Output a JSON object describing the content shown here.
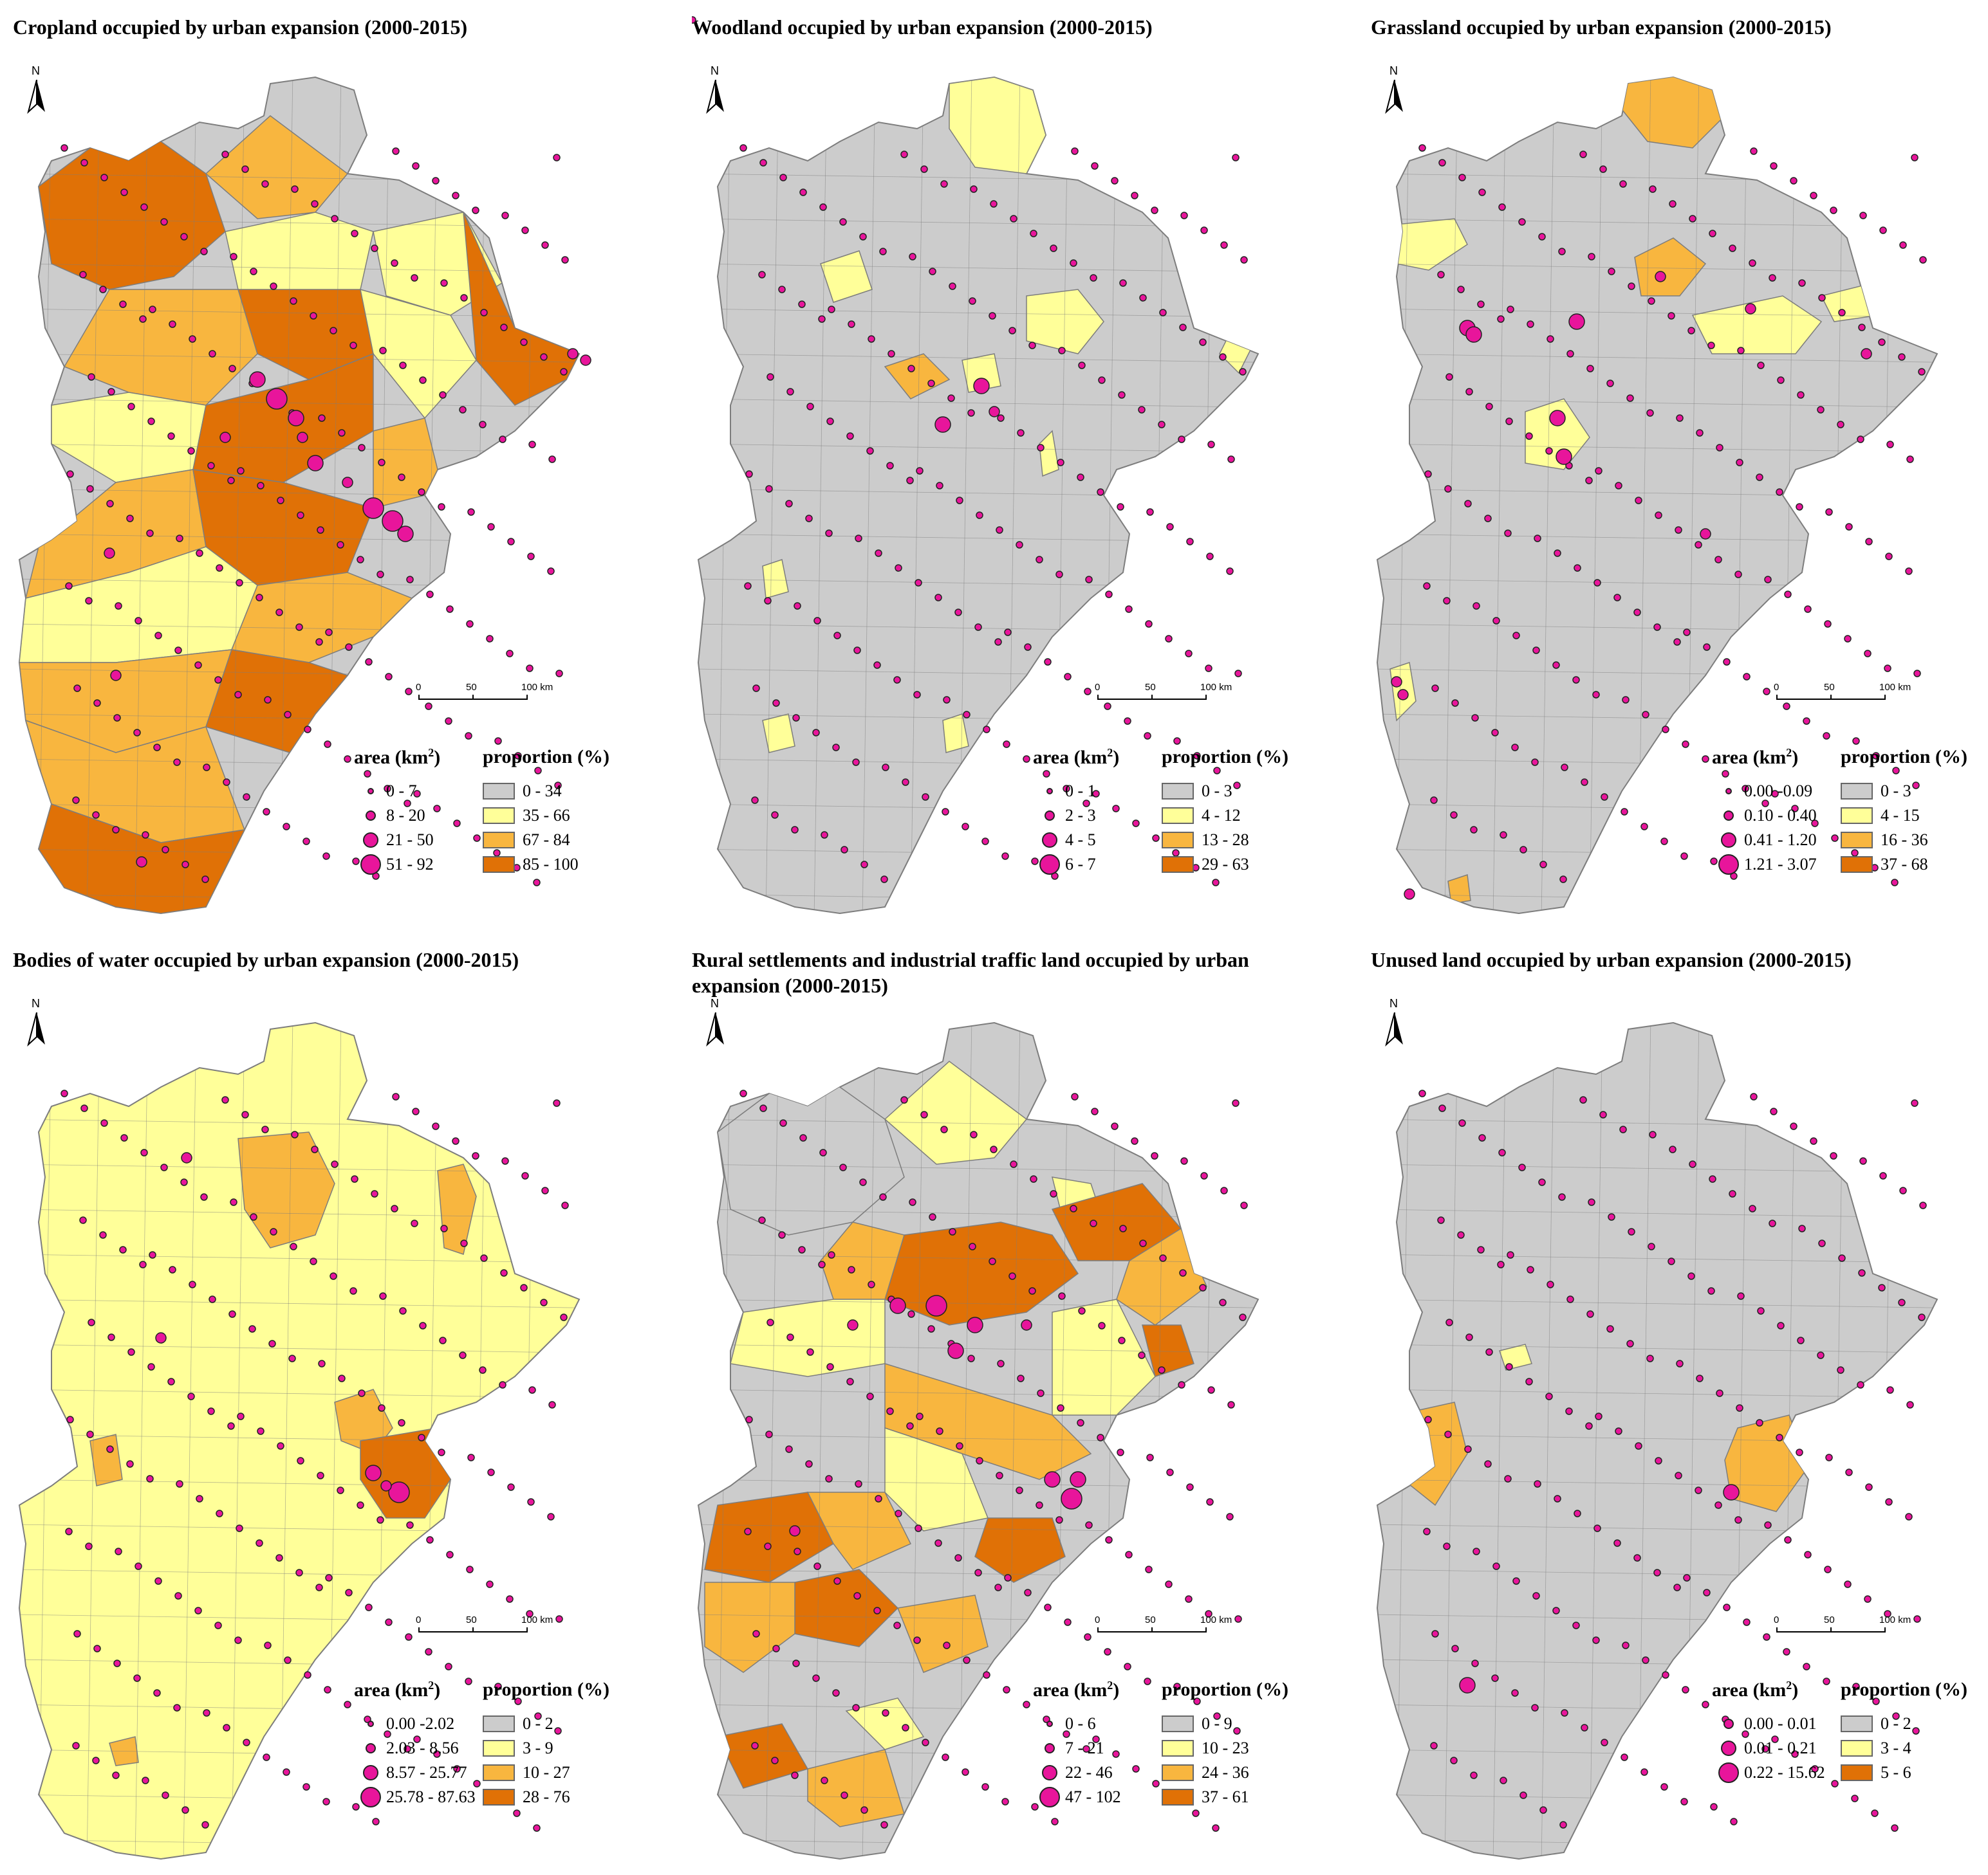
{
  "colors": {
    "class1": "#cccccc",
    "class2": "#ffff99",
    "class3": "#f8b63f",
    "class4": "#e07106",
    "water_class1": "#ffff99",
    "boundary": "#7d7d7d",
    "dot": "#e8159b"
  },
  "common": {
    "north_label": "N",
    "scale_labels": [
      "0",
      "50",
      "100 km"
    ],
    "area_heading": "area (km",
    "area_superscript": "2",
    "area_heading_close": ")",
    "proportion_heading": "proportion (%)"
  },
  "panels": [
    {
      "title": "Cropland occupied by urban expansion (2000-2015)",
      "area_classes": [
        "0 - 7",
        "8 - 20",
        "21 - 50",
        "51 - 92"
      ],
      "proportion_classes": [
        "0 - 34",
        "35 - 66",
        "67 - 84",
        "85 - 100"
      ],
      "symbols": [
        {
          "name": "c1",
          "color": "#cccccc"
        },
        {
          "name": "c2",
          "color": "#ffff99"
        },
        {
          "name": "c3",
          "color": "#f8b63f"
        },
        {
          "name": "c4",
          "color": "#e07106"
        }
      ]
    },
    {
      "title": "Woodland occupied by urban expansion (2000-2015)",
      "area_classes": [
        "0 - 1",
        "2 - 3",
        "4 - 5",
        "6 - 7"
      ],
      "proportion_classes": [
        "0 - 3",
        "4 - 12",
        "13 - 28",
        "29 - 63"
      ],
      "symbols": [
        {
          "name": "c1",
          "color": "#cccccc"
        },
        {
          "name": "c2",
          "color": "#ffff99"
        },
        {
          "name": "c3",
          "color": "#f8b63f"
        },
        {
          "name": "c4",
          "color": "#e07106"
        }
      ]
    },
    {
      "title": "Grassland occupied by urban expansion (2000-2015)",
      "area_classes": [
        "0.00 -0.09",
        "0.10 - 0.40",
        "0.41 - 1.20",
        "1.21 - 3.07"
      ],
      "proportion_classes": [
        "0 - 3",
        "4 - 15",
        "16 - 36",
        "37 - 68"
      ],
      "symbols": [
        {
          "name": "c1",
          "color": "#cccccc"
        },
        {
          "name": "c2",
          "color": "#ffff99"
        },
        {
          "name": "c3",
          "color": "#f8b63f"
        },
        {
          "name": "c4",
          "color": "#e07106"
        }
      ]
    },
    {
      "title": "Bodies of water occupied by urban expansion (2000-2015)",
      "area_classes": [
        "0.00 -2.02",
        "2.03 - 8.56",
        "8.57 - 25.77",
        "25.78 - 87.63"
      ],
      "proportion_classes": [
        "0 - 2",
        "3 - 9",
        "10 - 27",
        "28 - 76"
      ],
      "symbols": [
        {
          "name": "c1",
          "color": "#cccccc"
        },
        {
          "name": "c2",
          "color": "#ffff99"
        },
        {
          "name": "c3",
          "color": "#f8b63f"
        },
        {
          "name": "c4",
          "color": "#e07106"
        }
      ]
    },
    {
      "title": "Rural settlements and industrial traffic land occupied by urban expansion (2000-2015)",
      "area_classes": [
        "0 - 6",
        "7 - 21",
        "22 - 46",
        "47 - 102"
      ],
      "proportion_classes": [
        "0 - 9",
        "10 - 23",
        "24 - 36",
        "37 - 61"
      ],
      "symbols": [
        {
          "name": "c1",
          "color": "#cccccc"
        },
        {
          "name": "c2",
          "color": "#ffff99"
        },
        {
          "name": "c3",
          "color": "#f8b63f"
        },
        {
          "name": "c4",
          "color": "#e07106"
        }
      ]
    },
    {
      "title": "Unused land occupied by urban expansion (2000-2015)",
      "area_classes": [
        "0.00 - 0.01",
        "0.01 - 0.21",
        "0.22 - 15.62"
      ],
      "proportion_classes": [
        "0 - 2",
        "3 - 4",
        "5 - 6"
      ],
      "symbols": [
        {
          "name": "c1",
          "color": "#cccccc"
        },
        {
          "name": "c2",
          "color": "#ffff99"
        },
        {
          "name": "c4",
          "color": "#e07106"
        }
      ]
    }
  ]
}
